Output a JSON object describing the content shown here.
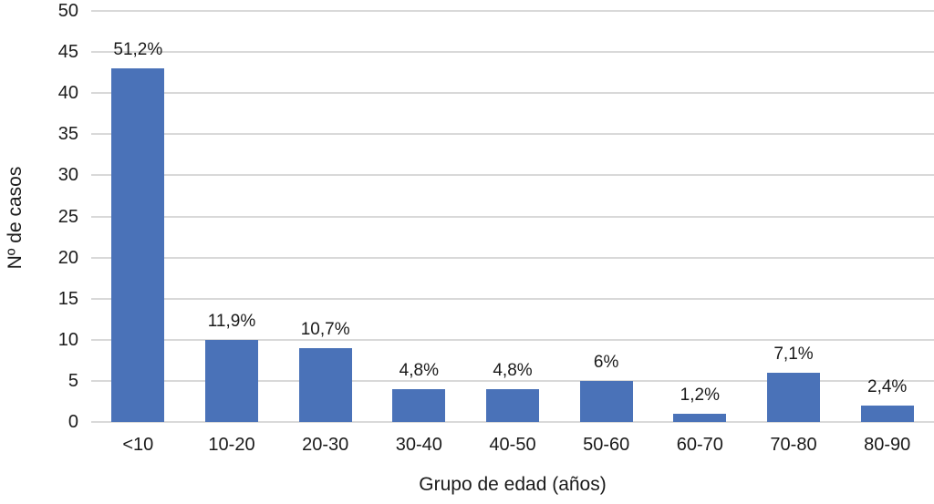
{
  "chart_data": {
    "type": "bar",
    "title": "",
    "xlabel": "Grupo de edad (años)",
    "ylabel": "Nº de casos",
    "categories": [
      "<10",
      "10-20",
      "20-30",
      "30-40",
      "40-50",
      "50-60",
      "60-70",
      "70-80",
      "80-90"
    ],
    "values": [
      43,
      10,
      9,
      4,
      4,
      5,
      1,
      6,
      2
    ],
    "bar_labels": [
      "51,2%",
      "11,9%",
      "10,7%",
      "4,8%",
      "4,8%",
      "6%",
      "1,2%",
      "7,1%",
      "2,4%"
    ],
    "ylim": [
      0,
      50
    ],
    "yticks": [
      0,
      5,
      10,
      15,
      20,
      25,
      30,
      35,
      40,
      45,
      50
    ],
    "grid": true,
    "legend": false,
    "bar_color": "#4a72b8",
    "gridline_color": "#d9d9d9",
    "text_color": "#1a1a1a"
  }
}
